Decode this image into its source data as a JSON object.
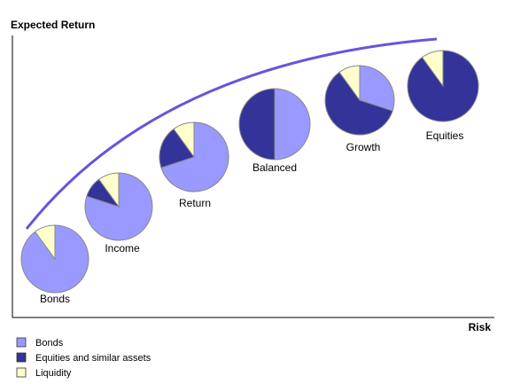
{
  "chart_data": {
    "type": "pie",
    "ylabel": "Expected Return",
    "xlabel": "Risk",
    "legend_position": "bottom-left",
    "legend": [
      {
        "name": "Bonds",
        "color": "#9999ff"
      },
      {
        "name": "Equities and similar assets",
        "color": "#333399"
      },
      {
        "name": "Liquidity",
        "color": "#ffffcc"
      }
    ],
    "pies": [
      {
        "label": "Bonds",
        "bonds": 90,
        "equities": 0,
        "liquidity": 10
      },
      {
        "label": "Income",
        "bonds": 80,
        "equities": 10,
        "liquidity": 10
      },
      {
        "label": "Return",
        "bonds": 70,
        "equities": 20,
        "liquidity": 10
      },
      {
        "label": "Balanced",
        "bonds": 50,
        "equities": 50,
        "liquidity": 0
      },
      {
        "label": "Growth",
        "bonds": 30,
        "equities": 60,
        "liquidity": 10
      },
      {
        "label": "Equities",
        "bonds": 0,
        "equities": 90,
        "liquidity": 10
      }
    ]
  },
  "colors": {
    "curve": "#6655dd",
    "axis": "#000000",
    "slice_stroke": "#888888"
  }
}
